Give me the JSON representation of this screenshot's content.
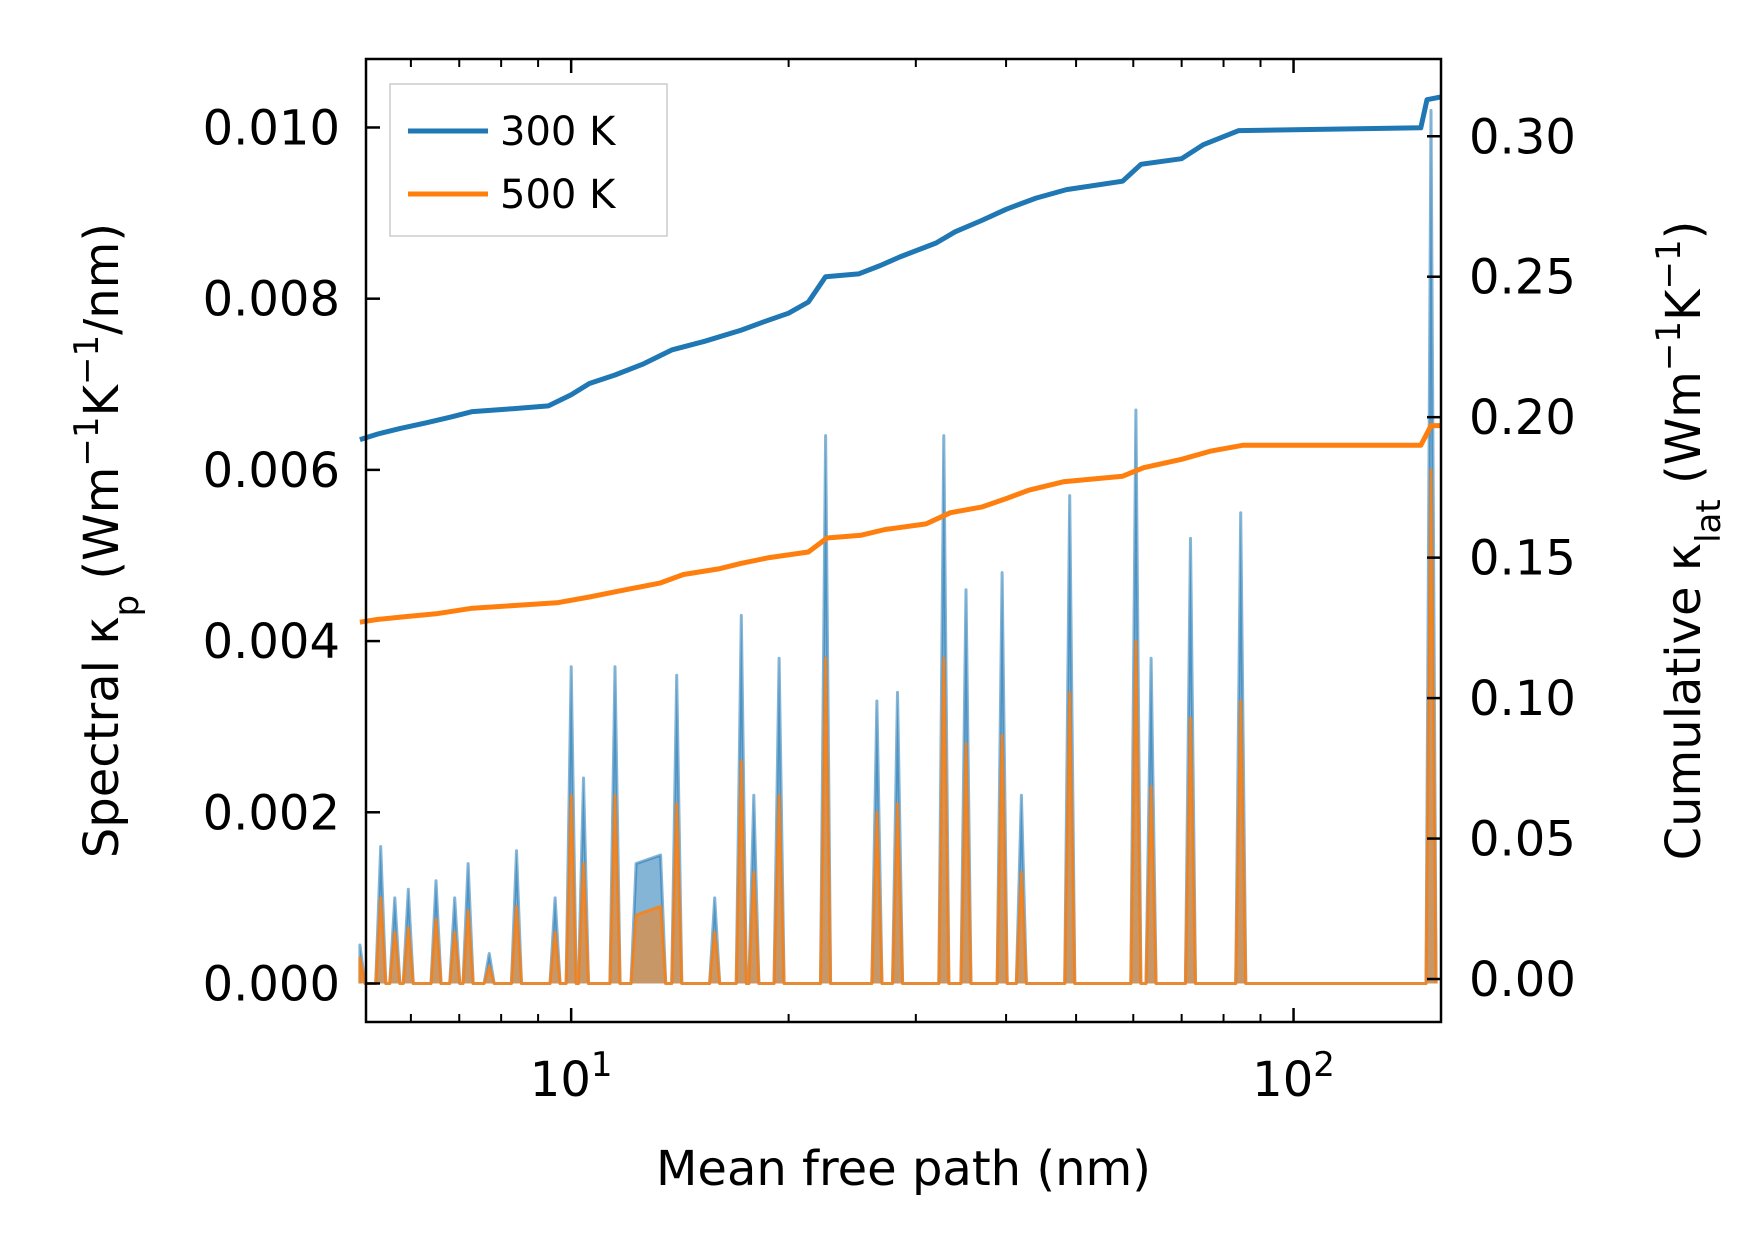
{
  "chart_data": {
    "type": "line",
    "xscale": "log",
    "xlim": [
      5.2,
      160
    ],
    "ylim_left": [
      -0.00045,
      0.0108
    ],
    "ylim_right": [
      -0.0153,
      0.3275
    ],
    "xlabel": "Mean free path (nm)",
    "ylabel_left": {
      "main": "Spectral κ",
      "sub": "p",
      "unit_open": " (Wm",
      "sup1": "−1",
      "mid": "K",
      "sup2": "−1",
      "unit_close": "/nm)"
    },
    "ylabel_right": {
      "main": "Cumulative κ",
      "sub": "lat",
      "unit_open": " (Wm",
      "sup1": "−1",
      "mid": "K",
      "sup2": "−1",
      "unit_close": ")"
    },
    "x_ticks": [
      {
        "value": 10,
        "base": "10",
        "exp": "1"
      },
      {
        "value": 100,
        "base": "10",
        "exp": "2"
      }
    ],
    "y_ticks_left": [
      "0.000",
      "0.002",
      "0.004",
      "0.006",
      "0.008",
      "0.010"
    ],
    "y_ticks_right": [
      "0.00",
      "0.05",
      "0.10",
      "0.15",
      "0.20",
      "0.25",
      "0.30"
    ],
    "legend": {
      "position": "upper-left",
      "entries": [
        {
          "label": "300 K",
          "color": "#1f77b4"
        },
        {
          "label": "500 K",
          "color": "#ff7f0e"
        }
      ]
    },
    "peaks": [
      [
        5.1,
        0.00045,
        0.0003
      ],
      [
        5.45,
        0.0016,
        0.001
      ],
      [
        5.7,
        0.001,
        0.0006
      ],
      [
        5.95,
        0.0011,
        0.00065
      ],
      [
        6.5,
        0.0012,
        0.00075
      ],
      [
        6.9,
        0.001,
        0.0006
      ],
      [
        7.2,
        0.0014,
        0.00085
      ],
      [
        7.7,
        0.00035,
        0.0002
      ],
      [
        8.4,
        0.00155,
        0.0009
      ],
      [
        9.5,
        0.001,
        0.0006
      ],
      [
        10.0,
        0.0037,
        0.0022
      ],
      [
        10.4,
        0.0024,
        0.0014
      ],
      [
        11.5,
        0.0037,
        0.0022
      ],
      [
        14.0,
        0.0036,
        0.0021
      ],
      [
        15.8,
        0.001,
        0.0006
      ],
      [
        17.2,
        0.0043,
        0.0026
      ],
      [
        17.9,
        0.0022,
        0.0013
      ],
      [
        19.4,
        0.0038,
        0.0022
      ],
      [
        22.5,
        0.0064,
        0.0038
      ],
      [
        26.5,
        0.0033,
        0.002
      ],
      [
        28.3,
        0.0034,
        0.0021
      ],
      [
        32.8,
        0.0064,
        0.0038
      ],
      [
        35.2,
        0.0046,
        0.0028
      ],
      [
        39.5,
        0.0048,
        0.0029
      ],
      [
        42.0,
        0.0022,
        0.0013
      ],
      [
        49.0,
        0.0057,
        0.0034
      ],
      [
        60.5,
        0.0067,
        0.004
      ],
      [
        63.5,
        0.0038,
        0.0023
      ],
      [
        72.0,
        0.0052,
        0.0031
      ],
      [
        84.5,
        0.0055,
        0.0033
      ],
      [
        155.0,
        0.0102,
        0.006
      ]
    ],
    "plateau": {
      "x": [
        12.3,
        13.3
      ],
      "values_300K": [
        0.0014,
        0.0015
      ],
      "values_500K": [
        0.0008,
        0.0009
      ]
    },
    "series": [
      {
        "name": "300 K",
        "color": "#1f77b4",
        "cumulative": [
          [
            5.1,
            0.192
          ],
          [
            5.4,
            0.194
          ],
          [
            5.8,
            0.196
          ],
          [
            6.3,
            0.198
          ],
          [
            6.8,
            0.2
          ],
          [
            7.3,
            0.202
          ],
          [
            8.3,
            0.203
          ],
          [
            9.3,
            0.204
          ],
          [
            10.0,
            0.208
          ],
          [
            10.6,
            0.212
          ],
          [
            11.5,
            0.215
          ],
          [
            12.6,
            0.219
          ],
          [
            13.8,
            0.224
          ],
          [
            15.3,
            0.227
          ],
          [
            17.2,
            0.231
          ],
          [
            18.5,
            0.234
          ],
          [
            20.0,
            0.237
          ],
          [
            21.3,
            0.241
          ],
          [
            22.5,
            0.25
          ],
          [
            25.0,
            0.251
          ],
          [
            26.8,
            0.254
          ],
          [
            28.5,
            0.257
          ],
          [
            32.0,
            0.262
          ],
          [
            34.0,
            0.266
          ],
          [
            37.0,
            0.27
          ],
          [
            40.0,
            0.274
          ],
          [
            44.0,
            0.278
          ],
          [
            48.5,
            0.281
          ],
          [
            58.0,
            0.284
          ],
          [
            61.5,
            0.29
          ],
          [
            70.0,
            0.292
          ],
          [
            75.0,
            0.297
          ],
          [
            84.0,
            0.302
          ],
          [
            150.0,
            0.303
          ],
          [
            153.0,
            0.313
          ],
          [
            160.0,
            0.314
          ]
        ]
      },
      {
        "name": "500 K",
        "color": "#ff7f0e",
        "cumulative": [
          [
            5.1,
            0.127
          ],
          [
            5.4,
            0.128
          ],
          [
            5.9,
            0.129
          ],
          [
            6.5,
            0.13
          ],
          [
            7.3,
            0.132
          ],
          [
            8.4,
            0.133
          ],
          [
            9.6,
            0.134
          ],
          [
            10.6,
            0.136
          ],
          [
            11.6,
            0.138
          ],
          [
            13.3,
            0.141
          ],
          [
            14.3,
            0.144
          ],
          [
            16.0,
            0.146
          ],
          [
            17.2,
            0.148
          ],
          [
            18.8,
            0.15
          ],
          [
            21.3,
            0.152
          ],
          [
            22.6,
            0.157
          ],
          [
            25.2,
            0.158
          ],
          [
            27.2,
            0.16
          ],
          [
            31.0,
            0.162
          ],
          [
            33.5,
            0.166
          ],
          [
            37.0,
            0.168
          ],
          [
            40.0,
            0.171
          ],
          [
            43.0,
            0.174
          ],
          [
            48.0,
            0.177
          ],
          [
            58.0,
            0.179
          ],
          [
            62.0,
            0.182
          ],
          [
            70.0,
            0.185
          ],
          [
            77.0,
            0.188
          ],
          [
            85.0,
            0.19
          ],
          [
            150.0,
            0.19
          ],
          [
            155.0,
            0.197
          ],
          [
            160.0,
            0.197
          ]
        ]
      }
    ]
  }
}
